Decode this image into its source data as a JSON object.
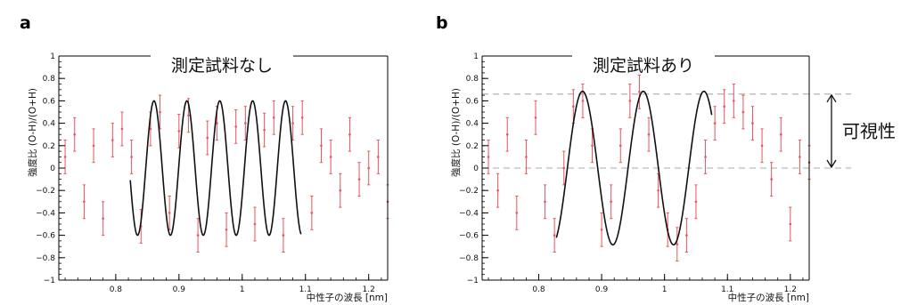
{
  "panels": [
    {
      "letter": "a",
      "title": "測定試料なし",
      "xlabel": "中性子の波長 [nm]",
      "ylabel": "強度比 (O-H)/(O+H)"
    },
    {
      "letter": "b",
      "title": "測定試料あり",
      "xlabel": "中性子の波長 [nm]",
      "ylabel": "強度比 (O-H)/(O+H)",
      "annotation": "可視性"
    }
  ],
  "colors": {
    "data": "#e8555a",
    "fit": "#111111",
    "axis": "#000000",
    "ref_line": "#aaaaaa"
  },
  "chart_data": [
    {
      "type": "scatter",
      "title": "測定試料なし",
      "xlabel": "中性子の波長 [nm]",
      "ylabel": "強度比 (O-H)/(O+H)",
      "xlim": [
        0.71,
        1.23
      ],
      "ylim": [
        -1,
        1
      ],
      "xticks": [
        0.8,
        0.9,
        1,
        1.1,
        1.2
      ],
      "yticks": [
        -1,
        -0.8,
        -0.6,
        -0.4,
        -0.2,
        0,
        0.2,
        0.4,
        0.6,
        0.8,
        1
      ],
      "xtick_labels": [
        "0.8",
        "0.9",
        "1",
        "1.1",
        "1.2"
      ],
      "ytick_labels": [
        "−1",
        "−0.8",
        "−0.6",
        "−0.4",
        "−0.2",
        "0",
        "0.2",
        "0.4",
        "0.6",
        "0.8",
        "1"
      ],
      "series": [
        {
          "kind": "data_with_error_bars",
          "x": [
            0.72,
            0.735,
            0.75,
            0.765,
            0.78,
            0.795,
            0.81,
            0.825,
            0.84,
            0.855,
            0.87,
            0.885,
            0.9,
            0.915,
            0.93,
            0.945,
            0.96,
            0.975,
            0.99,
            1.005,
            1.02,
            1.035,
            1.05,
            1.065,
            1.08,
            1.095,
            1.11,
            1.125,
            1.14,
            1.155,
            1.17,
            1.185,
            1.2,
            1.215,
            1.23
          ],
          "y": [
            0.1,
            0.3,
            -0.3,
            0.2,
            -0.45,
            0.25,
            0.35,
            0.1,
            -0.52,
            0.35,
            0.5,
            -0.4,
            0.33,
            0.47,
            -0.6,
            0.27,
            0.4,
            -0.55,
            0.37,
            0.4,
            -0.5,
            0.34,
            0.45,
            -0.6,
            0.4,
            0.45,
            -0.4,
            0.2,
            0.1,
            -0.2,
            0.3,
            -0.1,
            0.0,
            0.1,
            -0.3
          ],
          "err": 0.15
        },
        {
          "kind": "fit",
          "model": "A*sin(2*pi*(x - x0)/period)",
          "amplitude": 0.6,
          "period": 0.052,
          "x0": 0.8475,
          "x_range": [
            0.823,
            1.093
          ]
        }
      ]
    },
    {
      "type": "scatter",
      "title": "測定試料あり",
      "xlabel": "中性子の波長 [nm]",
      "ylabel": "強度比 (O-H)/(O+H)",
      "xlim": [
        0.71,
        1.23
      ],
      "ylim": [
        -1,
        1
      ],
      "xticks": [
        0.8,
        0.9,
        1,
        1.1,
        1.2
      ],
      "yticks": [
        -1,
        -0.8,
        -0.6,
        -0.4,
        -0.2,
        0,
        0.2,
        0.4,
        0.6,
        0.8,
        1
      ],
      "xtick_labels": [
        "0.8",
        "0.9",
        "1",
        "1.1",
        "1.2"
      ],
      "ytick_labels": [
        "−1",
        "−0.8",
        "−0.6",
        "−0.4",
        "−0.2",
        "0",
        "0.2",
        "0.4",
        "0.6",
        "0.8",
        "1"
      ],
      "reference_lines_y": [
        0.66,
        0
      ],
      "series": [
        {
          "kind": "data_with_error_bars",
          "x": [
            0.72,
            0.735,
            0.75,
            0.765,
            0.78,
            0.795,
            0.81,
            0.825,
            0.84,
            0.855,
            0.87,
            0.885,
            0.9,
            0.915,
            0.93,
            0.945,
            0.96,
            0.975,
            0.99,
            1.005,
            1.02,
            1.035,
            1.05,
            1.065,
            1.08,
            1.095,
            1.11,
            1.125,
            1.14,
            1.155,
            1.17,
            1.185,
            1.2,
            1.215,
            1.23
          ],
          "y": [
            0.1,
            -0.2,
            0.3,
            -0.4,
            0.1,
            0.45,
            -0.3,
            -0.6,
            0.0,
            0.55,
            0.6,
            0.2,
            -0.55,
            -0.3,
            0.2,
            0.6,
            0.68,
            0.3,
            -0.2,
            -0.55,
            -0.68,
            -0.6,
            -0.3,
            0.1,
            0.4,
            0.55,
            0.6,
            0.5,
            0.4,
            0.2,
            -0.1,
            0.3,
            -0.5,
            0.1,
            0.05
          ],
          "err": 0.15
        },
        {
          "kind": "fit",
          "model": "A*sin(2*pi*(x - x0)/period)",
          "amplitude": 0.685,
          "period": 0.0965,
          "x0": 0.8455,
          "x_range": [
            0.828,
            1.075
          ]
        }
      ]
    }
  ]
}
